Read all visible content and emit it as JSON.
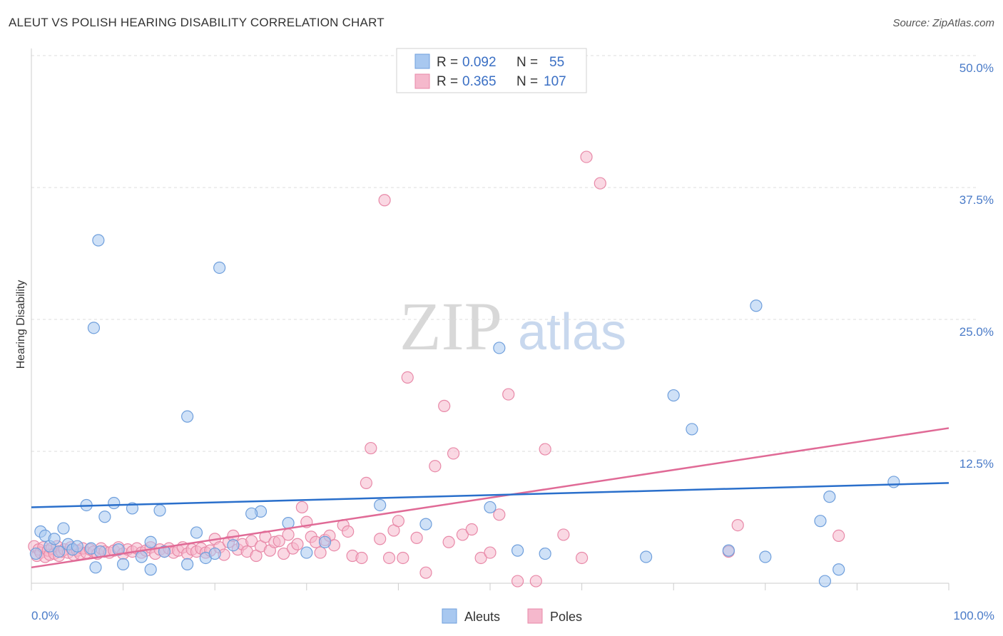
{
  "title": "ALEUT VS POLISH HEARING DISABILITY CORRELATION CHART",
  "source": "Source: ZipAtlas.com",
  "watermark": {
    "zip": "ZIP",
    "atlas": "atlas"
  },
  "legend": {
    "rows": [
      {
        "r_label": "R = ",
        "r_value": "0.092",
        "n_label": "N = ",
        "n_value": "55",
        "color": "#a8c8f0"
      },
      {
        "r_label": "R = ",
        "r_value": "0.365",
        "n_label": "N = ",
        "n_value": "107",
        "color": "#f5b8cc"
      }
    ]
  },
  "bottom_legend": [
    {
      "label": "Aleuts",
      "color": "#a8c8f0"
    },
    {
      "label": "Poles",
      "color": "#f5b8cc"
    }
  ],
  "chart_data": {
    "type": "scatter",
    "xlabel": "",
    "ylabel": "Hearing Disability",
    "x_ticks": [
      "0.0%",
      "100.0%"
    ],
    "y_ticks": [
      "12.5%",
      "25.0%",
      "37.5%",
      "50.0%"
    ],
    "xlim": [
      0,
      100
    ],
    "ylim": [
      0,
      50
    ],
    "colors": {
      "aleuts_fill": "#a8c8f0",
      "aleuts_stroke": "#6f9fdc",
      "aleuts_line": "#2a6fcb",
      "poles_fill": "#f5b8cc",
      "poles_stroke": "#e889a8",
      "poles_line": "#e06a96"
    },
    "series": [
      {
        "name": "Aleuts",
        "trend": [
          [
            0,
            7.2
          ],
          [
            100,
            9.5
          ]
        ],
        "points": [
          [
            0.5,
            2.8
          ],
          [
            1.0,
            4.9
          ],
          [
            1.5,
            4.5
          ],
          [
            2.0,
            3.5
          ],
          [
            2.5,
            4.2
          ],
          [
            3.0,
            3.0
          ],
          [
            3.5,
            5.2
          ],
          [
            4.0,
            3.7
          ],
          [
            4.5,
            3.2
          ],
          [
            5.0,
            3.5
          ],
          [
            6.0,
            7.4
          ],
          [
            6.5,
            3.3
          ],
          [
            7.0,
            1.5
          ],
          [
            7.5,
            3.0
          ],
          [
            8.0,
            6.3
          ],
          [
            9.0,
            7.6
          ],
          [
            7.3,
            32.5
          ],
          [
            6.8,
            24.2
          ],
          [
            9.5,
            3.2
          ],
          [
            10.0,
            1.8
          ],
          [
            11.0,
            7.1
          ],
          [
            12.0,
            2.5
          ],
          [
            13.0,
            3.9
          ],
          [
            13.0,
            1.3
          ],
          [
            14.0,
            6.9
          ],
          [
            14.5,
            3.0
          ],
          [
            17.0,
            15.8
          ],
          [
            17.0,
            1.8
          ],
          [
            18.0,
            4.8
          ],
          [
            19.0,
            2.4
          ],
          [
            20.0,
            2.8
          ],
          [
            22.0,
            3.6
          ],
          [
            25.0,
            6.8
          ],
          [
            24.0,
            6.6
          ],
          [
            28.0,
            5.7
          ],
          [
            20.5,
            29.9
          ],
          [
            30.0,
            2.9
          ],
          [
            32.0,
            3.9
          ],
          [
            38.0,
            7.4
          ],
          [
            43.0,
            5.6
          ],
          [
            50.0,
            7.2
          ],
          [
            51.0,
            22.3
          ],
          [
            53.0,
            3.1
          ],
          [
            56.0,
            2.8
          ],
          [
            67.0,
            2.5
          ],
          [
            70.0,
            17.8
          ],
          [
            72.0,
            14.6
          ],
          [
            76.0,
            3.1
          ],
          [
            79.0,
            26.3
          ],
          [
            80.0,
            2.5
          ],
          [
            86.0,
            5.9
          ],
          [
            86.5,
            0.2
          ],
          [
            87.0,
            8.2
          ],
          [
            88.0,
            1.3
          ],
          [
            94.0,
            9.6
          ]
        ]
      },
      {
        "name": "Poles",
        "trend": [
          [
            0,
            1.5
          ],
          [
            100,
            14.7
          ]
        ],
        "points": [
          [
            0.3,
            3.5
          ],
          [
            0.6,
            2.6
          ],
          [
            0.8,
            3.2
          ],
          [
            1.0,
            2.9
          ],
          [
            1.3,
            3.4
          ],
          [
            1.5,
            2.5
          ],
          [
            1.8,
            3.1
          ],
          [
            2.0,
            2.7
          ],
          [
            2.2,
            3.3
          ],
          [
            2.5,
            2.8
          ],
          [
            2.8,
            3.5
          ],
          [
            3.0,
            2.6
          ],
          [
            3.3,
            3.0
          ],
          [
            3.6,
            3.2
          ],
          [
            4.0,
            2.9
          ],
          [
            4.3,
            3.4
          ],
          [
            4.6,
            2.7
          ],
          [
            5.0,
            3.1
          ],
          [
            5.3,
            2.8
          ],
          [
            5.6,
            3.3
          ],
          [
            6.0,
            2.9
          ],
          [
            6.4,
            3.2
          ],
          [
            6.8,
            3.0
          ],
          [
            7.2,
            2.8
          ],
          [
            7.6,
            3.3
          ],
          [
            8.0,
            3.0
          ],
          [
            8.5,
            2.9
          ],
          [
            9.0,
            3.1
          ],
          [
            9.5,
            3.4
          ],
          [
            10.0,
            2.8
          ],
          [
            10.5,
            3.2
          ],
          [
            11.0,
            3.0
          ],
          [
            11.5,
            3.3
          ],
          [
            12.0,
            2.9
          ],
          [
            12.5,
            3.1
          ],
          [
            13.0,
            3.4
          ],
          [
            13.5,
            2.8
          ],
          [
            14.0,
            3.2
          ],
          [
            14.5,
            3.0
          ],
          [
            15.0,
            3.3
          ],
          [
            15.5,
            2.9
          ],
          [
            16.0,
            3.1
          ],
          [
            16.5,
            3.4
          ],
          [
            17.0,
            2.8
          ],
          [
            17.5,
            3.2
          ],
          [
            18.0,
            3.0
          ],
          [
            18.5,
            3.3
          ],
          [
            19.0,
            2.9
          ],
          [
            19.5,
            3.1
          ],
          [
            20.0,
            4.2
          ],
          [
            20.5,
            3.4
          ],
          [
            21.0,
            2.7
          ],
          [
            21.5,
            3.9
          ],
          [
            22.0,
            4.5
          ],
          [
            22.5,
            3.2
          ],
          [
            23.0,
            3.7
          ],
          [
            23.5,
            3.0
          ],
          [
            24.0,
            4.0
          ],
          [
            24.5,
            2.6
          ],
          [
            25.0,
            3.5
          ],
          [
            25.5,
            4.4
          ],
          [
            26.0,
            3.1
          ],
          [
            26.5,
            3.9
          ],
          [
            27.0,
            4.0
          ],
          [
            27.5,
            2.8
          ],
          [
            28.0,
            4.6
          ],
          [
            28.5,
            3.3
          ],
          [
            29.0,
            3.7
          ],
          [
            29.5,
            7.2
          ],
          [
            30.0,
            5.8
          ],
          [
            30.5,
            4.4
          ],
          [
            31.0,
            3.9
          ],
          [
            31.5,
            2.9
          ],
          [
            32.0,
            4.1
          ],
          [
            32.5,
            4.5
          ],
          [
            33.0,
            3.6
          ],
          [
            34.0,
            5.5
          ],
          [
            34.5,
            4.9
          ],
          [
            35.0,
            2.6
          ],
          [
            36.0,
            2.4
          ],
          [
            36.5,
            9.5
          ],
          [
            37.0,
            12.8
          ],
          [
            38.0,
            4.2
          ],
          [
            38.5,
            36.3
          ],
          [
            39.0,
            2.4
          ],
          [
            39.5,
            5.0
          ],
          [
            40.0,
            5.9
          ],
          [
            40.5,
            2.4
          ],
          [
            41.0,
            19.5
          ],
          [
            42.0,
            4.3
          ],
          [
            43.0,
            1.0
          ],
          [
            44.0,
            11.1
          ],
          [
            45.0,
            16.8
          ],
          [
            45.5,
            3.9
          ],
          [
            46.0,
            12.3
          ],
          [
            47.0,
            4.6
          ],
          [
            48.0,
            5.1
          ],
          [
            49.0,
            2.4
          ],
          [
            50.0,
            2.9
          ],
          [
            51.0,
            6.5
          ],
          [
            52.0,
            17.9
          ],
          [
            53.0,
            0.2
          ],
          [
            55.0,
            0.2
          ],
          [
            56.0,
            12.7
          ],
          [
            58.0,
            4.6
          ],
          [
            60.0,
            2.4
          ],
          [
            60.5,
            40.4
          ],
          [
            62.0,
            37.9
          ],
          [
            76.0,
            3.0
          ],
          [
            77.0,
            5.5
          ],
          [
            88.0,
            4.5
          ]
        ]
      }
    ]
  }
}
